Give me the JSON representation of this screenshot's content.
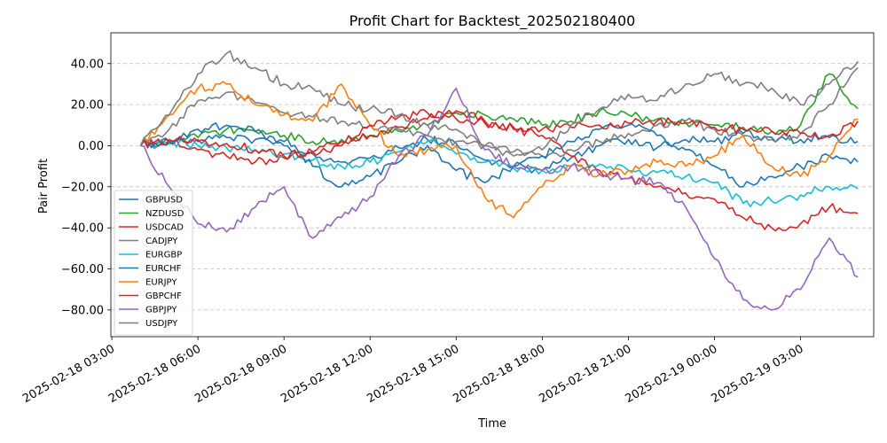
{
  "chart_data": {
    "type": "line",
    "title": "Profit Chart for Backtest_202502180400",
    "xlabel": "Time",
    "ylabel": "Pair Profit",
    "xlim": [
      "2025-02-18 02:58",
      "2025-02-19 05:33"
    ],
    "ylim": [
      -93,
      55
    ],
    "grid": "horizontal dashed",
    "legend": "left, lower-middle",
    "x_ticks": [
      "2025-02-18 03:00",
      "2025-02-18 06:00",
      "2025-02-18 09:00",
      "2025-02-18 12:00",
      "2025-02-18 15:00",
      "2025-02-18 18:00",
      "2025-02-18 21:00",
      "2025-02-19 00:00",
      "2025-02-19 03:00"
    ],
    "y_ticks": [
      -80,
      -60,
      -40,
      -20,
      0,
      20,
      40
    ],
    "y_tick_labels": [
      "−80.00",
      "−60.00",
      "−40.00",
      "−20.00",
      "0.00",
      "20.00",
      "40.00"
    ],
    "series": [
      {
        "name": "GBPUSD",
        "color": "#1f77b4",
        "x": [
          "2025-02-18 04:00",
          "2025-02-18 05:00",
          "2025-02-18 06:00",
          "2025-02-18 07:00",
          "2025-02-18 08:00",
          "2025-02-18 09:00",
          "2025-02-18 10:00",
          "2025-02-18 11:00",
          "2025-02-18 12:00",
          "2025-02-18 13:00",
          "2025-02-18 14:00",
          "2025-02-18 15:00",
          "2025-02-18 16:00",
          "2025-02-18 17:00",
          "2025-02-18 18:00",
          "2025-02-18 19:00",
          "2025-02-18 20:00",
          "2025-02-18 21:00",
          "2025-02-18 22:00",
          "2025-02-18 23:00",
          "2025-02-19 00:00",
          "2025-02-19 01:00",
          "2025-02-19 02:00",
          "2025-02-19 03:00",
          "2025-02-19 04:00",
          "2025-02-19 05:00"
        ],
        "y": [
          0,
          2,
          3,
          4,
          3,
          2,
          -4,
          -8,
          -6,
          -1,
          3,
          1,
          -7,
          -10,
          -12,
          -6,
          0,
          3,
          -1,
          3,
          2,
          6,
          4,
          3,
          4,
          2
        ]
      },
      {
        "name": "NZDUSD",
        "color": "#2ca02c",
        "x": [
          "2025-02-18 04:00",
          "2025-02-18 05:00",
          "2025-02-18 06:00",
          "2025-02-18 07:00",
          "2025-02-18 08:00",
          "2025-02-18 09:00",
          "2025-02-18 10:00",
          "2025-02-18 11:00",
          "2025-02-18 12:00",
          "2025-02-18 13:00",
          "2025-02-18 14:00",
          "2025-02-18 15:00",
          "2025-02-18 16:00",
          "2025-02-18 17:00",
          "2025-02-18 18:00",
          "2025-02-18 19:00",
          "2025-02-18 20:00",
          "2025-02-18 21:00",
          "2025-02-18 22:00",
          "2025-02-18 23:00",
          "2025-02-19 00:00",
          "2025-02-19 01:00",
          "2025-02-19 02:00",
          "2025-02-19 03:00",
          "2025-02-19 04:00",
          "2025-02-19 05:00"
        ],
        "y": [
          0,
          1,
          4,
          8,
          7,
          5,
          2,
          3,
          5,
          7,
          10,
          16,
          15,
          13,
          10,
          12,
          17,
          15,
          13,
          11,
          10,
          9,
          7,
          10,
          35,
          18
        ]
      },
      {
        "name": "USDCAD",
        "color": "#d62728",
        "x": [
          "2025-02-18 04:00",
          "2025-02-18 05:00",
          "2025-02-18 06:00",
          "2025-02-18 07:00",
          "2025-02-18 08:00",
          "2025-02-18 09:00",
          "2025-02-18 10:00",
          "2025-02-18 11:00",
          "2025-02-18 12:00",
          "2025-02-18 13:00",
          "2025-02-18 14:00",
          "2025-02-18 15:00",
          "2025-02-18 16:00",
          "2025-02-18 17:00",
          "2025-02-18 18:00",
          "2025-02-18 19:00",
          "2025-02-18 20:00",
          "2025-02-18 21:00",
          "2025-02-18 22:00",
          "2025-02-18 23:00",
          "2025-02-19 00:00",
          "2025-02-19 01:00",
          "2025-02-19 02:00",
          "2025-02-19 03:00",
          "2025-02-19 04:00",
          "2025-02-19 05:00"
        ],
        "y": [
          0,
          2,
          -2,
          -5,
          -8,
          -6,
          -3,
          0,
          5,
          9,
          13,
          17,
          12,
          8,
          5,
          -5,
          -12,
          -16,
          -20,
          -23,
          -26,
          -35,
          -40,
          -38,
          -30,
          -33
        ]
      },
      {
        "name": "CADJPY",
        "color": "#7f7f7f",
        "x": [
          "2025-02-18 04:00",
          "2025-02-18 05:00",
          "2025-02-18 06:00",
          "2025-02-18 07:00",
          "2025-02-18 08:00",
          "2025-02-18 09:00",
          "2025-02-18 10:00",
          "2025-02-18 11:00",
          "2025-02-18 12:00",
          "2025-02-18 13:00",
          "2025-02-18 14:00",
          "2025-02-18 15:00",
          "2025-02-18 16:00",
          "2025-02-18 17:00",
          "2025-02-18 18:00",
          "2025-02-18 19:00",
          "2025-02-18 20:00",
          "2025-02-18 21:00",
          "2025-02-18 22:00",
          "2025-02-18 23:00",
          "2025-02-19 00:00",
          "2025-02-19 01:00",
          "2025-02-19 02:00",
          "2025-02-19 03:00",
          "2025-02-19 04:00",
          "2025-02-19 05:00"
        ],
        "y": [
          0,
          8,
          22,
          26,
          21,
          16,
          14,
          12,
          10,
          8,
          5,
          2,
          0,
          -3,
          -5,
          -2,
          2,
          6,
          10,
          12,
          8,
          5,
          3,
          6,
          20,
          38
        ]
      },
      {
        "name": "EURGBP",
        "color": "#17becf",
        "x": [
          "2025-02-18 04:00",
          "2025-02-18 05:00",
          "2025-02-18 06:00",
          "2025-02-18 07:00",
          "2025-02-18 08:00",
          "2025-02-18 09:00",
          "2025-02-18 10:00",
          "2025-02-18 11:00",
          "2025-02-18 12:00",
          "2025-02-18 13:00",
          "2025-02-18 14:00",
          "2025-02-18 15:00",
          "2025-02-18 16:00",
          "2025-02-18 17:00",
          "2025-02-18 18:00",
          "2025-02-18 19:00",
          "2025-02-18 20:00",
          "2025-02-18 21:00",
          "2025-02-18 22:00",
          "2025-02-18 23:00",
          "2025-02-19 00:00",
          "2025-02-19 01:00",
          "2025-02-19 02:00",
          "2025-02-19 03:00",
          "2025-02-19 04:00",
          "2025-02-19 05:00"
        ],
        "y": [
          0,
          1,
          0,
          -1,
          -2,
          -4,
          -7,
          -10,
          -8,
          -3,
          2,
          -4,
          -8,
          -11,
          -12,
          -10,
          -9,
          -12,
          -13,
          -15,
          -18,
          -28,
          -27,
          -24,
          -20,
          -21
        ]
      },
      {
        "name": "EURCHF",
        "color": "#1f77b4",
        "x": [
          "2025-02-18 04:00",
          "2025-02-18 05:00",
          "2025-02-18 06:00",
          "2025-02-18 07:00",
          "2025-02-18 08:00",
          "2025-02-18 09:00",
          "2025-02-18 10:00",
          "2025-02-18 11:00",
          "2025-02-18 12:00",
          "2025-02-18 13:00",
          "2025-02-18 14:00",
          "2025-02-18 15:00",
          "2025-02-18 16:00",
          "2025-02-18 17:00",
          "2025-02-18 18:00",
          "2025-02-18 19:00",
          "2025-02-18 20:00",
          "2025-02-18 21:00",
          "2025-02-18 22:00",
          "2025-02-18 23:00",
          "2025-02-19 00:00",
          "2025-02-19 01:00",
          "2025-02-19 02:00",
          "2025-02-19 03:00",
          "2025-02-19 04:00",
          "2025-02-19 05:00"
        ],
        "y": [
          0,
          2,
          8,
          10,
          7,
          0,
          -10,
          -20,
          -15,
          -8,
          0,
          -12,
          -18,
          -10,
          -5,
          2,
          8,
          10,
          5,
          -2,
          -10,
          -20,
          -15,
          -10,
          -5,
          -8
        ]
      },
      {
        "name": "EURJPY",
        "color": "#ff7f0e",
        "x": [
          "2025-02-18 04:00",
          "2025-02-18 05:00",
          "2025-02-18 06:00",
          "2025-02-18 07:00",
          "2025-02-18 08:00",
          "2025-02-18 09:00",
          "2025-02-18 10:00",
          "2025-02-18 11:00",
          "2025-02-18 12:00",
          "2025-02-18 13:00",
          "2025-02-18 14:00",
          "2025-02-18 15:00",
          "2025-02-18 16:00",
          "2025-02-18 17:00",
          "2025-02-18 18:00",
          "2025-02-18 19:00",
          "2025-02-18 20:00",
          "2025-02-18 21:00",
          "2025-02-18 22:00",
          "2025-02-18 23:00",
          "2025-02-19 00:00",
          "2025-02-19 01:00",
          "2025-02-19 02:00",
          "2025-02-19 03:00",
          "2025-02-19 04:00",
          "2025-02-19 05:00"
        ],
        "y": [
          0,
          15,
          28,
          30,
          20,
          15,
          12,
          30,
          10,
          -5,
          -2,
          0,
          -25,
          -35,
          -20,
          -10,
          -14,
          -12,
          -8,
          -10,
          -5,
          5,
          -10,
          -15,
          -5,
          13
        ]
      },
      {
        "name": "GBPCHF",
        "color": "#d62728",
        "x": [
          "2025-02-18 04:00",
          "2025-02-18 05:00",
          "2025-02-18 06:00",
          "2025-02-18 07:00",
          "2025-02-18 08:00",
          "2025-02-18 09:00",
          "2025-02-18 10:00",
          "2025-02-18 11:00",
          "2025-02-18 12:00",
          "2025-02-18 13:00",
          "2025-02-18 14:00",
          "2025-02-18 15:00",
          "2025-02-18 16:00",
          "2025-02-18 17:00",
          "2025-02-18 18:00",
          "2025-02-18 19:00",
          "2025-02-18 20:00",
          "2025-02-18 21:00",
          "2025-02-18 22:00",
          "2025-02-18 23:00",
          "2025-02-19 00:00",
          "2025-02-19 01:00",
          "2025-02-19 02:00",
          "2025-02-19 03:00",
          "2025-02-19 04:00",
          "2025-02-19 05:00"
        ],
        "y": [
          0,
          3,
          2,
          1,
          -2,
          -5,
          -3,
          2,
          10,
          14,
          16,
          13,
          11,
          9,
          8,
          9,
          10,
          11,
          12,
          11,
          9,
          8,
          7,
          6,
          5,
          12
        ]
      },
      {
        "name": "GBPJPY",
        "color": "#9467bd",
        "x": [
          "2025-02-18 04:00",
          "2025-02-18 05:00",
          "2025-02-18 06:00",
          "2025-02-18 07:00",
          "2025-02-18 08:00",
          "2025-02-18 09:00",
          "2025-02-18 10:00",
          "2025-02-18 11:00",
          "2025-02-18 12:00",
          "2025-02-18 13:00",
          "2025-02-18 14:00",
          "2025-02-18 15:00",
          "2025-02-18 16:00",
          "2025-02-18 17:00",
          "2025-02-18 18:00",
          "2025-02-18 19:00",
          "2025-02-18 20:00",
          "2025-02-18 21:00",
          "2025-02-18 22:00",
          "2025-02-18 23:00",
          "2025-02-19 00:00",
          "2025-02-19 01:00",
          "2025-02-19 02:00",
          "2025-02-19 03:00",
          "2025-02-19 04:00",
          "2025-02-19 05:00"
        ],
        "y": [
          0,
          -20,
          -38,
          -42,
          -30,
          -20,
          -45,
          -35,
          -25,
          -5,
          5,
          28,
          -2,
          -10,
          -12,
          -10,
          -14,
          -16,
          -18,
          -30,
          -55,
          -75,
          -80,
          -70,
          -45,
          -64
        ]
      },
      {
        "name": "USDJPY",
        "color": "#7f7f7f",
        "x": [
          "2025-02-18 04:00",
          "2025-02-18 05:00",
          "2025-02-18 06:00",
          "2025-02-18 07:00",
          "2025-02-18 08:00",
          "2025-02-18 09:00",
          "2025-02-18 10:00",
          "2025-02-18 11:00",
          "2025-02-18 12:00",
          "2025-02-18 13:00",
          "2025-02-18 14:00",
          "2025-02-18 15:00",
          "2025-02-18 16:00",
          "2025-02-18 17:00",
          "2025-02-18 18:00",
          "2025-02-18 19:00",
          "2025-02-18 20:00",
          "2025-02-18 21:00",
          "2025-02-18 22:00",
          "2025-02-18 23:00",
          "2025-02-19 00:00",
          "2025-02-19 01:00",
          "2025-02-19 02:00",
          "2025-02-19 03:00",
          "2025-02-19 04:00",
          "2025-02-19 05:00"
        ],
        "y": [
          0,
          15,
          35,
          45,
          38,
          30,
          28,
          20,
          18,
          15,
          10,
          8,
          0,
          -5,
          -2,
          10,
          18,
          25,
          22,
          30,
          35,
          30,
          28,
          20,
          30,
          41
        ]
      }
    ]
  }
}
